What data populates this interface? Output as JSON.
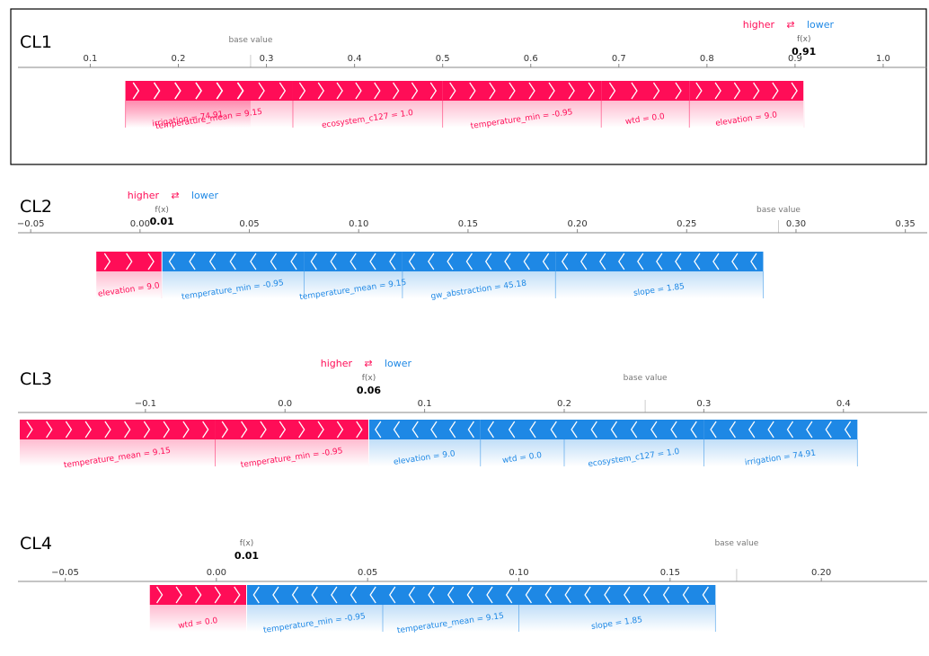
{
  "colors": {
    "higher": "#ff0d57",
    "lower": "#1e88e5",
    "axis": "#888888",
    "text": "#000000",
    "muted": "#666666"
  },
  "legend": {
    "higher": "higher",
    "arrows": "⇄",
    "lower": "lower"
  },
  "labels": {
    "base_value": "base value",
    "fx": "f(x)"
  },
  "chart_data": [
    {
      "type": "force",
      "title": "CL1",
      "xlim": [
        0.02,
        1.05
      ],
      "ticks": [
        0.1,
        0.2,
        0.3,
        0.4,
        0.5,
        0.6,
        0.7,
        0.8,
        0.9,
        1.0
      ],
      "tick_labels": [
        "0.1",
        "0.2",
        "0.3",
        "0.4",
        "0.5",
        "0.6",
        "0.7",
        "0.8",
        "0.9",
        "1.0"
      ],
      "base_value": 0.282,
      "fx": 0.91,
      "fx_label": "0.91",
      "features": [
        {
          "label": "irrigation = 74.91",
          "start": 0.282,
          "end": 0.14,
          "sign": "pos"
        },
        {
          "label": "temperature_mean = 9.15",
          "start": 0.14,
          "end": 0.33,
          "sign": "pos"
        },
        {
          "label": "ecosystem_c127 = 1.0",
          "start": 0.33,
          "end": 0.5,
          "sign": "pos"
        },
        {
          "label": "temperature_min = -0.95",
          "start": 0.5,
          "end": 0.68,
          "sign": "pos"
        },
        {
          "label": "wtd = 0.0",
          "start": 0.68,
          "end": 0.78,
          "sign": "pos"
        },
        {
          "label": "elevation = 9.0",
          "start": 0.78,
          "end": 0.91,
          "sign": "pos"
        }
      ]
    },
    {
      "type": "force",
      "title": "CL2",
      "xlim": [
        -0.055,
        0.36
      ],
      "ticks": [
        -0.05,
        0.0,
        0.05,
        0.1,
        0.15,
        0.2,
        0.25,
        0.3,
        0.35
      ],
      "tick_labels": [
        "−0.05",
        "0.00",
        "0.05",
        "0.10",
        "0.15",
        "0.20",
        "0.25",
        "0.30",
        "0.35"
      ],
      "base_value": 0.292,
      "fx": 0.01,
      "fx_label": "0.01",
      "features": [
        {
          "label": "elevation = 9.0",
          "start": -0.02,
          "end": 0.01,
          "sign": "pos"
        },
        {
          "label": "temperature_min = -0.95",
          "start": 0.01,
          "end": 0.075,
          "sign": "neg"
        },
        {
          "label": "temperature_mean = 9.15",
          "start": 0.075,
          "end": 0.12,
          "sign": "neg"
        },
        {
          "label": "gw_abstraction = 45.18",
          "start": 0.12,
          "end": 0.19,
          "sign": "neg"
        },
        {
          "label": "slope = 1.85",
          "start": 0.19,
          "end": 0.285,
          "sign": "neg"
        }
      ]
    },
    {
      "type": "force",
      "title": "CL3",
      "xlim": [
        -0.19,
        0.46
      ],
      "ticks": [
        -0.1,
        0.0,
        0.1,
        0.2,
        0.3,
        0.4
      ],
      "tick_labels": [
        "−0.1",
        "0.0",
        "0.1",
        "0.2",
        "0.3",
        "0.4"
      ],
      "base_value": 0.258,
      "fx": 0.06,
      "fx_label": "0.06",
      "features": [
        {
          "label": "temperature_mean = 9.15",
          "start": -0.19,
          "end": -0.05,
          "sign": "pos"
        },
        {
          "label": "temperature_min = -0.95",
          "start": -0.05,
          "end": 0.06,
          "sign": "pos"
        },
        {
          "label": "elevation = 9.0",
          "start": 0.06,
          "end": 0.14,
          "sign": "neg"
        },
        {
          "label": "wtd = 0.0",
          "start": 0.14,
          "end": 0.2,
          "sign": "neg"
        },
        {
          "label": "ecosystem_c127 = 1.0",
          "start": 0.2,
          "end": 0.3,
          "sign": "neg"
        },
        {
          "label": "irrigation = 74.91",
          "start": 0.3,
          "end": 0.41,
          "sign": "neg"
        }
      ]
    },
    {
      "type": "force",
      "title": "CL4",
      "xlim": [
        -0.065,
        0.235
      ],
      "ticks": [
        -0.05,
        0.0,
        0.05,
        0.1,
        0.15,
        0.2
      ],
      "tick_labels": [
        "−0.05",
        "0.00",
        "0.05",
        "0.10",
        "0.15",
        "0.20"
      ],
      "base_value": 0.172,
      "fx": 0.01,
      "fx_label": "0.01",
      "features": [
        {
          "label": "wtd = 0.0",
          "start": -0.022,
          "end": 0.01,
          "sign": "pos"
        },
        {
          "label": "temperature_min = -0.95",
          "start": 0.01,
          "end": 0.055,
          "sign": "neg"
        },
        {
          "label": "temperature_mean = 9.15",
          "start": 0.055,
          "end": 0.1,
          "sign": "neg"
        },
        {
          "label": "slope = 1.85",
          "start": 0.1,
          "end": 0.165,
          "sign": "neg"
        }
      ]
    }
  ]
}
